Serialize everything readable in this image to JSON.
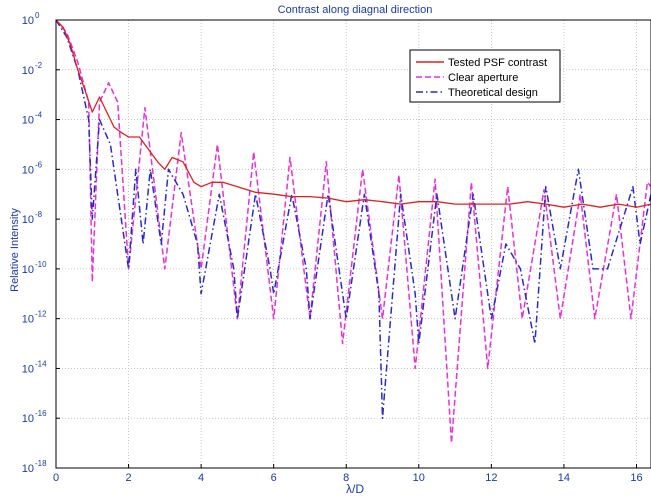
{
  "chart_data": {
    "type": "line",
    "title": "Contrast along diagnal direction",
    "xlabel": "λ/D",
    "ylabel": "Relative Intensity",
    "xlim": [
      0,
      16.4
    ],
    "ylim": [
      1e-18,
      1
    ],
    "yscale": "log",
    "grid": true,
    "legend_position": "top-right",
    "x_ticks": [
      0,
      2,
      4,
      6,
      8,
      10,
      12,
      14,
      16
    ],
    "x_tick_labels": [
      "0",
      "2",
      "4",
      "6",
      "8",
      "10",
      "12",
      "14",
      "16"
    ],
    "y_ticks": [
      0,
      -2,
      -4,
      -6,
      -8,
      -10,
      -12,
      -14,
      -16,
      -18
    ],
    "y_tick_labels": [
      {
        "base": "10",
        "exp": "0"
      },
      {
        "base": "10",
        "exp": "-2"
      },
      {
        "base": "10",
        "exp": "-4"
      },
      {
        "base": "10",
        "exp": "-6"
      },
      {
        "base": "10",
        "exp": "-8"
      },
      {
        "base": "10",
        "exp": "-10"
      },
      {
        "base": "10",
        "exp": "-12"
      },
      {
        "base": "10",
        "exp": "-14"
      },
      {
        "base": "10",
        "exp": "-16"
      },
      {
        "base": "10",
        "exp": "-18"
      }
    ],
    "series": [
      {
        "name": "Tested PSF contrast",
        "color": "#e02020",
        "dash": "solid",
        "x": [
          0,
          0.2,
          0.4,
          0.6,
          0.8,
          1.0,
          1.2,
          1.4,
          1.6,
          1.8,
          2.0,
          2.3,
          2.6,
          2.8,
          3.0,
          3.2,
          3.5,
          3.8,
          4.0,
          4.3,
          4.6,
          5.0,
          5.5,
          6.0,
          6.5,
          7.0,
          7.5,
          8.0,
          8.5,
          9.0,
          9.5,
          10.0,
          10.5,
          11.0,
          11.5,
          12.0,
          12.5,
          13.0,
          13.5,
          14.0,
          14.5,
          15.0,
          15.5,
          16.0,
          16.4
        ],
        "y": [
          1,
          0.5,
          0.1,
          0.01,
          0.0015,
          0.0002,
          0.0008,
          0.0002,
          5e-05,
          3e-05,
          2e-05,
          2e-05,
          5e-06,
          2e-06,
          1e-06,
          3e-06,
          2e-06,
          3e-07,
          2e-07,
          3e-07,
          3e-07,
          2e-07,
          1.2e-07,
          1e-07,
          8e-08,
          8e-08,
          7e-08,
          5e-08,
          6e-08,
          5e-08,
          4e-08,
          5e-08,
          5e-08,
          4e-08,
          4e-08,
          4e-08,
          4e-08,
          5e-08,
          4e-08,
          3e-08,
          4e-08,
          3e-08,
          4e-08,
          3e-08,
          4e-08
        ]
      },
      {
        "name": "Clear aperture",
        "color": "#e830d8",
        "dash": "dashed",
        "x": [
          0,
          0.3,
          0.6,
          0.9,
          1.0,
          1.2,
          1.45,
          1.7,
          2.0,
          2.45,
          3.0,
          3.45,
          4.0,
          4.45,
          5.0,
          5.45,
          6.0,
          6.45,
          7.0,
          7.45,
          7.9,
          8.45,
          9.0,
          9.45,
          9.9,
          10.45,
          10.9,
          11.45,
          11.9,
          12.45,
          12.85,
          13.45,
          13.9,
          14.45,
          14.85,
          15.45,
          15.85,
          16.3,
          16.4
        ],
        "y": [
          1,
          0.3,
          0.02,
          0.0005,
          3e-11,
          0.0005,
          0.003,
          0.0005,
          1e-10,
          0.0003,
          1e-10,
          3e-05,
          1e-10,
          1e-05,
          1e-12,
          5e-06,
          1e-12,
          3e-06,
          1e-12,
          2e-06,
          1e-13,
          1e-06,
          1e-12,
          6e-07,
          1e-14,
          4e-07,
          1e-17,
          3e-07,
          1e-14,
          2e-07,
          1e-12,
          1.5e-07,
          1e-12,
          1e-07,
          1e-12,
          1e-07,
          1e-12,
          3e-07,
          2e-07
        ]
      },
      {
        "name": "Theoretical design",
        "color": "#2a2acc",
        "dash": "dashdot",
        "x": [
          0,
          0.3,
          0.6,
          0.9,
          1.0,
          1.2,
          1.5,
          1.8,
          2.0,
          2.2,
          2.4,
          2.6,
          2.9,
          3.1,
          3.5,
          3.9,
          4.0,
          4.5,
          4.9,
          5.0,
          5.5,
          5.9,
          6.0,
          6.5,
          6.9,
          7.0,
          7.5,
          7.9,
          8.0,
          8.5,
          8.9,
          9.0,
          9.5,
          9.9,
          10.0,
          10.5,
          10.9,
          11.0,
          11.5,
          11.9,
          12.0,
          12.4,
          12.8,
          13.2,
          13.5,
          13.9,
          14.4,
          14.8,
          15.2,
          15.9,
          16.1,
          16.4
        ],
        "y": [
          1,
          0.2,
          0.01,
          0.0001,
          1e-08,
          0.0001,
          1e-05,
          1e-08,
          1e-10,
          1e-06,
          1e-09,
          1e-06,
          1e-09,
          1e-06,
          1e-07,
          1e-09,
          1e-11,
          1e-07,
          1e-10,
          1e-12,
          1e-07,
          1e-10,
          1e-11,
          1e-07,
          1e-10,
          1e-12,
          1e-07,
          1e-11,
          1e-12,
          1e-07,
          1e-11,
          1e-16,
          1e-07,
          1e-11,
          1e-13,
          1e-07,
          1e-11,
          1e-12,
          1e-07,
          1e-11,
          1e-12,
          1e-09,
          1e-10,
          1e-13,
          2e-07,
          1e-10,
          1e-06,
          1e-10,
          1e-10,
          2e-07,
          1e-09,
          1e-07
        ]
      }
    ]
  }
}
